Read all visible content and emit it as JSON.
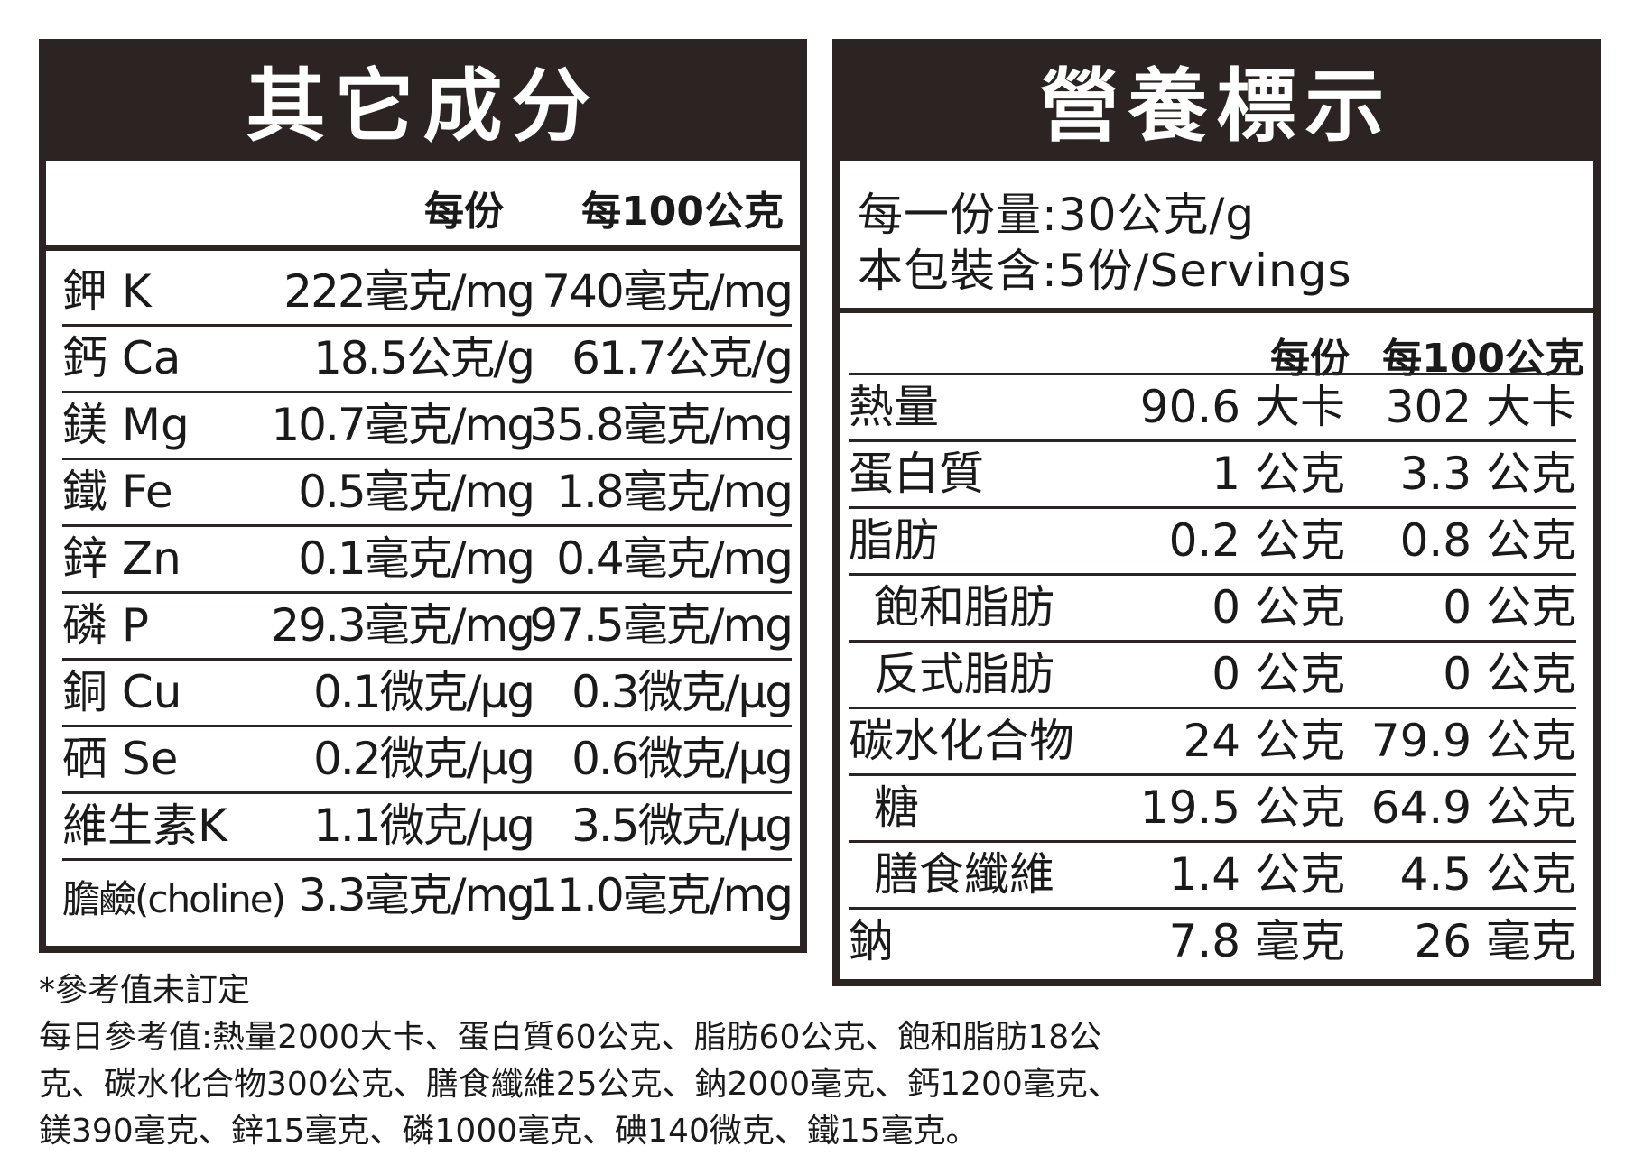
{
  "other_ingredients": {
    "title": "其它成分",
    "col_per_serving": "每份",
    "col_per_100g": "每100公克",
    "rows": [
      {
        "name": "鉀 K",
        "per_serving": "222毫克/mg",
        "per_100g": "740毫克/mg"
      },
      {
        "name": "鈣 Ca",
        "per_serving": "18.5公克/g",
        "per_100g": "61.7公克/g"
      },
      {
        "name": "鎂 Mg",
        "per_serving": "10.7毫克/mg",
        "per_100g": "35.8毫克/mg"
      },
      {
        "name": "鐵 Fe",
        "per_serving": "0.5毫克/mg",
        "per_100g": "1.8毫克/mg"
      },
      {
        "name": "鋅 Zn",
        "per_serving": "0.1毫克/mg",
        "per_100g": "0.4毫克/mg"
      },
      {
        "name": "磷 P",
        "per_serving": "29.3毫克/mg",
        "per_100g": "97.5毫克/mg"
      },
      {
        "name": "銅 Cu",
        "per_serving": "0.1微克/μg",
        "per_100g": "0.3微克/μg"
      },
      {
        "name": "硒 Se",
        "per_serving": "0.2微克/μg",
        "per_100g": "0.6微克/μg"
      },
      {
        "name": "維生素K",
        "per_serving": "1.1微克/μg",
        "per_100g": "3.5微克/μg"
      },
      {
        "name": "膽鹼(choline)",
        "per_serving": "3.3毫克/mg",
        "per_100g": "11.0毫克/mg"
      }
    ]
  },
  "nutrition": {
    "title": "營養標示",
    "serving_size": "每一份量:30公克/g",
    "servings_per_pack": "本包裝含:5份/Servings",
    "col_per_serving": "每份",
    "col_per_100g": "每100公克",
    "rows": [
      {
        "name": "熱量",
        "per_serving": "90.6 大卡",
        "per_100g": "302 大卡"
      },
      {
        "name": "蛋白質",
        "per_serving": "1 公克",
        "per_100g": "3.3 公克"
      },
      {
        "name": "脂肪",
        "per_serving": "0.2 公克",
        "per_100g": "0.8 公克"
      },
      {
        "name": "飽和脂肪",
        "per_serving": "0 公克",
        "per_100g": "0 公克"
      },
      {
        "name": "反式脂肪",
        "per_serving": "0 公克",
        "per_100g": "0 公克"
      },
      {
        "name": "碳水化合物",
        "per_serving": "24 公克",
        "per_100g": "79.9 公克"
      },
      {
        "name": "糖",
        "per_serving": "19.5 公克",
        "per_100g": "64.9 公克"
      },
      {
        "name": "膳食纖維",
        "per_serving": "1.4 公克",
        "per_100g": "4.5 公克"
      },
      {
        "name": "鈉",
        "per_serving": "7.8 毫克",
        "per_100g": "26 毫克"
      }
    ]
  },
  "footnotes": {
    "asterisk_note": "*參考值未訂定",
    "daily_reference_lines": [
      "每日參考值:熱量2000大卡、蛋白質60公克、脂肪60公克、飽和脂肪18公",
      "克、碳水化合物300公克、膳食纖維25公克、鈉2000毫克、鈣1200毫克、",
      "鎂390毫克、鋅15毫克、磷1000毫克、碘140微克、鐵15毫克。"
    ]
  },
  "colors": {
    "panel_dark": "#2b2423",
    "text": "#1a1a1a",
    "background": "#ffffff"
  }
}
